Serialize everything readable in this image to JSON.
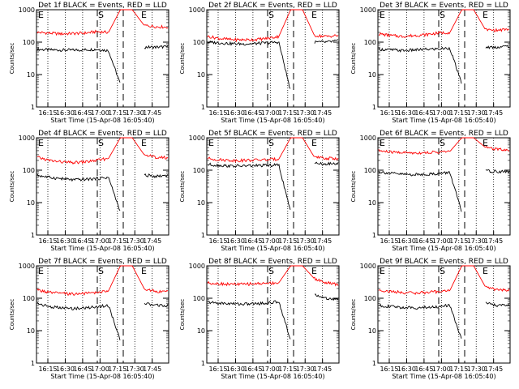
{
  "chart_data": [
    {
      "type": "line",
      "title": "Det 1f BLACK = Events, RED = LLD",
      "xlabel": "Start Time (15-Apr-08 16:05:40)",
      "ylabel": "Counts/sec",
      "yscale": "log",
      "ylim": [
        1,
        1000
      ],
      "xlim": [
        0,
        100
      ],
      "yticks": [
        "1",
        "10",
        "100",
        "1000"
      ],
      "xticks": [
        "16:15",
        "16:30",
        "16:45",
        "17:00",
        "17:15",
        "17:30",
        "17:45"
      ],
      "markers": [
        {
          "label": "E",
          "x": 0
        },
        {
          "label": "S",
          "x": 70
        },
        {
          "label": "E",
          "x": 115
        }
      ],
      "series": [
        {
          "color": "#000000",
          "values": [
            60,
            58,
            57,
            57,
            58,
            60,
            55,
            5,
            null,
            70,
            70,
            72
          ]
        },
        {
          "color": "#ff0000",
          "values": [
            200,
            190,
            180,
            185,
            190,
            210,
            200,
            1000,
            1000,
            330,
            300,
            290
          ]
        }
      ]
    },
    {
      "type": "line",
      "title": "Det 2f BLACK = Events, RED = LLD",
      "xlabel": "Start Time (15-Apr-08 16:05:40)",
      "ylabel": "Counts/sec",
      "yscale": "log",
      "ylim": [
        1,
        1000
      ],
      "xlim": [
        0,
        100
      ],
      "yticks": [
        "1",
        "10",
        "100",
        "1000"
      ],
      "xticks": [
        "16:15",
        "16:30",
        "16:45",
        "17:00",
        "17:15",
        "17:30",
        "17:45"
      ],
      "markers": [
        {
          "label": "S",
          "x": 70
        },
        {
          "label": "E",
          "x": 115
        }
      ],
      "series": [
        {
          "color": "#000000",
          "values": [
            100,
            95,
            90,
            88,
            90,
            95,
            100,
            3,
            null,
            100,
            100,
            110
          ]
        },
        {
          "color": "#ff0000",
          "values": [
            150,
            130,
            120,
            118,
            120,
            130,
            150,
            1000,
            1000,
            160,
            150,
            160
          ]
        }
      ]
    },
    {
      "type": "line",
      "title": "Det 3f BLACK = Events, RED = LLD",
      "xlabel": "Start Time (15-Apr-08 16:05:40)",
      "ylabel": "Counts/sec",
      "yscale": "log",
      "ylim": [
        1,
        1000
      ],
      "xlim": [
        0,
        100
      ],
      "yticks": [
        "1",
        "10",
        "100",
        "1000"
      ],
      "xticks": [
        "16:15",
        "16:30",
        "16:45",
        "17:00",
        "17:15",
        "17:30",
        "17:45"
      ],
      "markers": [
        {
          "label": "E",
          "x": 0
        },
        {
          "label": "S",
          "x": 70
        },
        {
          "label": "E",
          "x": 115
        }
      ],
      "series": [
        {
          "color": "#000000",
          "values": [
            60,
            58,
            55,
            57,
            60,
            62,
            65,
            5,
            null,
            70,
            70,
            75
          ]
        },
        {
          "color": "#ff0000",
          "values": [
            180,
            160,
            150,
            160,
            170,
            190,
            200,
            1000,
            1000,
            240,
            230,
            250
          ]
        }
      ]
    },
    {
      "type": "line",
      "title": "Det 4f BLACK = Events, RED = LLD",
      "xlabel": "Start Time (15-Apr-08 16:05:40)",
      "ylabel": "Counts/sec",
      "yscale": "log",
      "ylim": [
        1,
        1000
      ],
      "xlim": [
        0,
        100
      ],
      "yticks": [
        "1",
        "10",
        "100",
        "1000"
      ],
      "xticks": [
        "16:15",
        "16:30",
        "16:45",
        "17:00",
        "17:15",
        "17:30",
        "17:45"
      ],
      "markers": [
        {
          "label": "E",
          "x": 0
        },
        {
          "label": "S",
          "x": 70
        },
        {
          "label": "E",
          "x": 115
        }
      ],
      "series": [
        {
          "color": "#000000",
          "values": [
            70,
            60,
            55,
            50,
            52,
            55,
            60,
            5,
            null,
            70,
            65,
            70
          ]
        },
        {
          "color": "#ff0000",
          "values": [
            250,
            200,
            180,
            170,
            180,
            200,
            230,
            1000,
            1000,
            300,
            250,
            240
          ]
        }
      ]
    },
    {
      "type": "line",
      "title": "Det 5f BLACK = Events, RED = LLD",
      "xlabel": "Start Time (15-Apr-08 16:05:40)",
      "ylabel": "Counts/sec",
      "yscale": "log",
      "ylim": [
        1,
        1000
      ],
      "xlim": [
        0,
        100
      ],
      "yticks": [
        "1",
        "10",
        "100",
        "1000"
      ],
      "xticks": [
        "16:15",
        "16:30",
        "16:45",
        "17:00",
        "17:15",
        "17:30",
        "17:45"
      ],
      "markers": [
        {
          "label": "E",
          "x": 0
        },
        {
          "label": "S",
          "x": 70
        },
        {
          "label": "E",
          "x": 115
        }
      ],
      "series": [
        {
          "color": "#000000",
          "values": [
            150,
            140,
            135,
            135,
            138,
            140,
            145,
            5,
            null,
            160,
            155,
            160
          ]
        },
        {
          "color": "#ff0000",
          "values": [
            230,
            210,
            200,
            200,
            205,
            210,
            220,
            1000,
            1000,
            250,
            230,
            230
          ]
        }
      ]
    },
    {
      "type": "line",
      "title": "Det 6f BLACK = Events, RED = LLD",
      "xlabel": "Start Time (15-Apr-08 16:05:40)",
      "ylabel": "Counts/sec",
      "yscale": "log",
      "ylim": [
        1,
        1000
      ],
      "xlim": [
        0,
        100
      ],
      "yticks": [
        "1",
        "10",
        "100",
        "1000"
      ],
      "xticks": [
        "16:15",
        "16:30",
        "16:45",
        "17:00",
        "17:15",
        "17:30",
        "17:45"
      ],
      "markers": [
        {
          "label": "E",
          "x": 0
        },
        {
          "label": "S",
          "x": 70
        },
        {
          "label": "E",
          "x": 115
        }
      ],
      "series": [
        {
          "color": "#000000",
          "values": [
            90,
            80,
            75,
            73,
            75,
            78,
            85,
            5,
            null,
            95,
            90,
            90
          ]
        },
        {
          "color": "#ff0000",
          "values": [
            400,
            360,
            350,
            340,
            350,
            360,
            380,
            1000,
            1000,
            500,
            450,
            420
          ]
        }
      ]
    },
    {
      "type": "line",
      "title": "Det 7f BLACK = Events, RED = LLD",
      "xlabel": "Start Time (15-Apr-08 16:05:40)",
      "ylabel": "Counts/sec",
      "yscale": "log",
      "ylim": [
        1,
        1000
      ],
      "xlim": [
        0,
        100
      ],
      "yticks": [
        "1",
        "10",
        "100",
        "1000"
      ],
      "xticks": [
        "16:15",
        "16:30",
        "16:45",
        "17:00",
        "17:15",
        "17:30",
        "17:45"
      ],
      "markers": [
        {
          "label": "E",
          "x": 0
        },
        {
          "label": "S",
          "x": 70
        },
        {
          "label": "E",
          "x": 115
        }
      ],
      "series": [
        {
          "color": "#000000",
          "values": [
            70,
            55,
            50,
            48,
            50,
            55,
            60,
            5,
            null,
            70,
            60,
            60
          ]
        },
        {
          "color": "#ff0000",
          "values": [
            180,
            150,
            140,
            135,
            140,
            150,
            170,
            1000,
            1000,
            200,
            160,
            160
          ]
        }
      ]
    },
    {
      "type": "line",
      "title": "Det 8f BLACK = Events, RED = LLD",
      "xlabel": "Start Time (15-Apr-08 16:05:40)",
      "ylabel": "Counts/sec",
      "yscale": "log",
      "ylim": [
        1,
        1000
      ],
      "xlim": [
        0,
        100
      ],
      "yticks": [
        "1",
        "10",
        "100",
        "1000"
      ],
      "xticks": [
        "16:15",
        "16:30",
        "16:45",
        "17:00",
        "17:15",
        "17:30",
        "17:45"
      ],
      "markers": [
        {
          "label": "S",
          "x": 70
        },
        {
          "label": "E",
          "x": 115
        }
      ],
      "series": [
        {
          "color": "#000000",
          "values": [
            75,
            70,
            68,
            66,
            68,
            70,
            80,
            5,
            null,
            130,
            100,
            90
          ]
        },
        {
          "color": "#ff0000",
          "values": [
            300,
            280,
            270,
            270,
            280,
            290,
            300,
            1000,
            1000,
            400,
            300,
            260
          ]
        }
      ]
    },
    {
      "type": "line",
      "title": "Det 9f BLACK = Events, RED = LLD",
      "xlabel": "Start Time (15-Apr-08 16:05:40)",
      "ylabel": "Counts/sec",
      "yscale": "log",
      "ylim": [
        1,
        1000
      ],
      "xlim": [
        0,
        100
      ],
      "yticks": [
        "1",
        "10",
        "100",
        "1000"
      ],
      "xticks": [
        "16:15",
        "16:30",
        "16:45",
        "17:00",
        "17:15",
        "17:30",
        "17:45"
      ],
      "markers": [
        {
          "label": "E",
          "x": 0
        },
        {
          "label": "S",
          "x": 70
        },
        {
          "label": "E",
          "x": 115
        }
      ],
      "series": [
        {
          "color": "#000000",
          "values": [
            60,
            55,
            52,
            50,
            52,
            55,
            60,
            5,
            null,
            70,
            60,
            60
          ]
        },
        {
          "color": "#ff0000",
          "values": [
            180,
            160,
            150,
            145,
            150,
            160,
            175,
            1000,
            1000,
            220,
            180,
            180
          ]
        }
      ]
    }
  ]
}
